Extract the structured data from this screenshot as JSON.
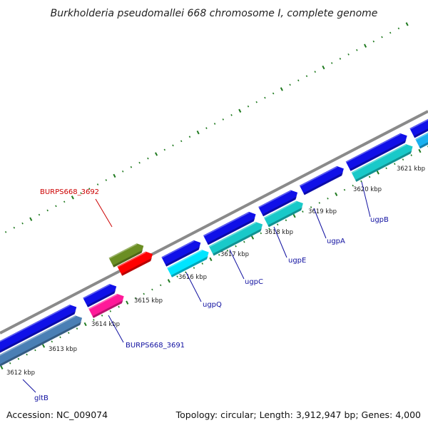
{
  "title": "Burkholderia pseudomallei 668 chromosome I, complete genome",
  "footer": {
    "accession": "Accession: NC_009074",
    "summary": "Topology: circular; Length: 3,912,947 bp; Genes: 4,000"
  },
  "colors": {
    "backbone": "#8a8a8a",
    "tick": "#1f7a1f",
    "label_blue": "#1010a0",
    "label_red": "#cc0000"
  },
  "kbp_labels": [
    "3612 kbp",
    "3613 kbp",
    "3614 kbp",
    "3615 kbp",
    "3616 kbp",
    "3617 kbp",
    "3618 kbp",
    "3619 kbp",
    "3620 kbp",
    "3621 kbp"
  ],
  "gene_labels": [
    {
      "id": "gltB",
      "text": "gltB",
      "color": "#1010a0"
    },
    {
      "id": "burps668-3691",
      "text": "BURPS668_3691",
      "color": "#1010a0"
    },
    {
      "id": "burps668-3692",
      "text": "BURPS668_3692",
      "color": "#cc0000"
    },
    {
      "id": "ugpq",
      "text": "ugpQ",
      "color": "#1010a0"
    },
    {
      "id": "ugpc",
      "text": "ugpC",
      "color": "#1010a0"
    },
    {
      "id": "ugpe",
      "text": "ugpE",
      "color": "#1010a0"
    },
    {
      "id": "ugpa",
      "text": "ugpA",
      "color": "#1010a0"
    },
    {
      "id": "ugpb",
      "text": "ugpB",
      "color": "#1010a0"
    }
  ],
  "gene_colors": {
    "cds_forward": "#1010e8",
    "cds_steel": "#4a7fb5",
    "cds_cyan": "#00e5ff",
    "cds_teal": "#19c9c9",
    "cds_sky": "#1ab0f0",
    "cds_magenta": "#ff1a99",
    "cds_olive": "#6b8e23",
    "cds_red": "#ff0000"
  }
}
